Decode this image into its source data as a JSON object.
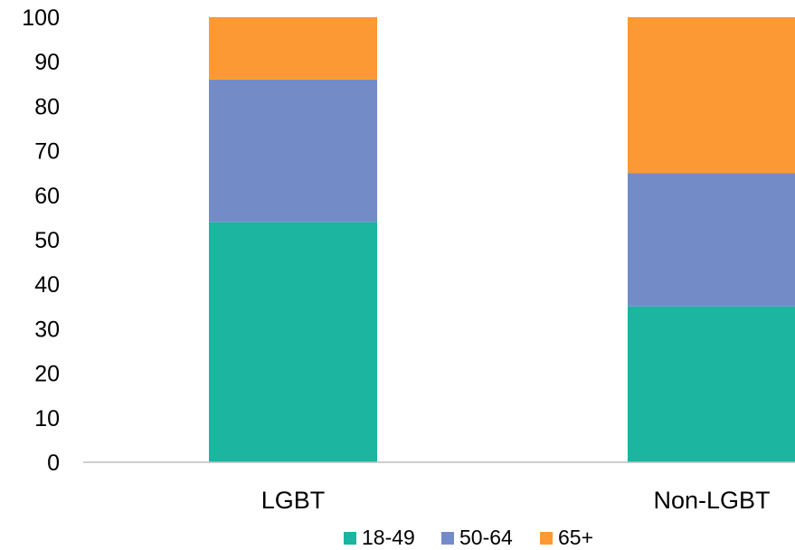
{
  "chart_data": {
    "type": "bar",
    "stacked": true,
    "categories": [
      "LGBT",
      "Non-LGBT"
    ],
    "series": [
      {
        "name": "18-49",
        "values": [
          54,
          35
        ],
        "color": "#1bb5a0"
      },
      {
        "name": "50-64",
        "values": [
          32,
          30
        ],
        "color": "#738cc8"
      },
      {
        "name": "65+",
        "values": [
          14,
          35
        ],
        "color": "#fd9935"
      }
    ],
    "y_ticks": [
      "0",
      "10",
      "20",
      "30",
      "40",
      "50",
      "60",
      "70",
      "80",
      "90",
      "100"
    ],
    "ylim": [
      0,
      100
    ],
    "grid": false,
    "legend_position": "bottom",
    "axis_color": "#bfbfbf"
  }
}
